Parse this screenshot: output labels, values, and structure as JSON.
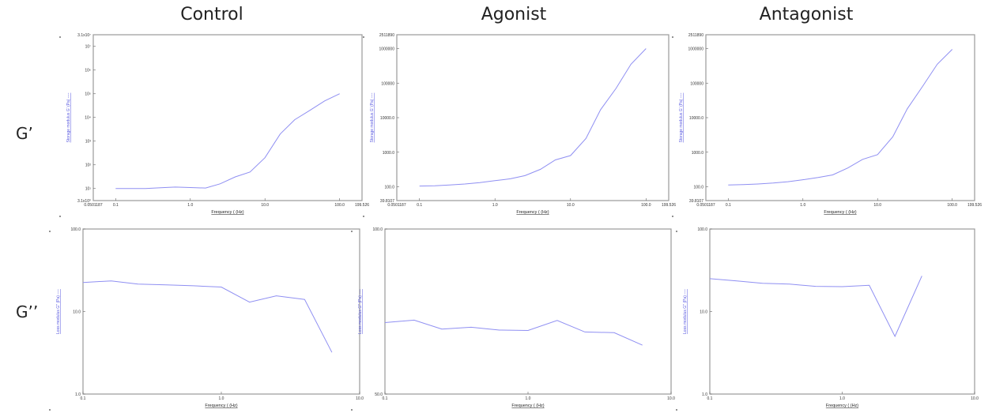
{
  "column_titles": [
    "Control",
    "Agonist",
    "Antagonist"
  ],
  "row_labels": [
    "G’",
    "G’’"
  ],
  "colors": {
    "series": "#8f8ff2",
    "frame": "#9a9a9a",
    "ylabel": "#5a5ae0"
  },
  "chart_data": [
    {
      "type": "line",
      "column": "Control",
      "row": "G’",
      "log_x": true,
      "log_y": true,
      "xlabel": "Frequency  ( (Hz)",
      "ylabel": "Storage modulus  G'  (Pa)  ----",
      "xlim": [
        0.0501187,
        199.526
      ],
      "ylim": [
        3.1,
        31000000.0
      ],
      "x_ticks": [
        0.1,
        1.0,
        10.0,
        100.0
      ],
      "x_tick_labels": [
        "0.1",
        "1.0",
        "10.0",
        "100.0"
      ],
      "x_edge_labels": [
        "0.0501187",
        "199.526"
      ],
      "y_ticks": [
        10,
        100,
        1000,
        10000,
        100000,
        1000000,
        10000000
      ],
      "y_tick_labels": [
        "10¹",
        "10²",
        "10³",
        "10⁴",
        "10⁵",
        "10⁶",
        "10⁷"
      ],
      "y_edge_labels": [
        "3.1x10⁰",
        "3.1x10⁷"
      ],
      "x": [
        0.1,
        0.16,
        0.25,
        0.4,
        0.63,
        1.0,
        1.6,
        2.5,
        4.0,
        6.3,
        10,
        16,
        25,
        40,
        63,
        100
      ],
      "y": [
        10,
        10,
        10,
        10.8,
        11.5,
        11,
        10.5,
        15.8,
        31,
        50,
        200,
        2000,
        8000,
        20000,
        50000,
        100000
      ]
    },
    {
      "type": "line",
      "column": "Agonist",
      "row": "G’",
      "log_x": true,
      "log_y": true,
      "xlabel": "Frequency  ( (Hz)",
      "ylabel": "Storage modulus  G'  (Pa)  ----",
      "xlim": [
        0.0501187,
        199.526
      ],
      "ylim": [
        39.8107,
        2511890
      ],
      "x_ticks": [
        0.1,
        1.0,
        10.0,
        100.0
      ],
      "x_tick_labels": [
        "0.1",
        "1.0",
        "10.0",
        "100.0"
      ],
      "x_edge_labels": [
        "0.0501187",
        "199.526"
      ],
      "y_ticks": [
        100,
        1000,
        10000,
        100000,
        1000000
      ],
      "y_tick_labels": [
        "100.0",
        "1000.0",
        "10000.0",
        "100000",
        "1000000"
      ],
      "y_edge_labels": [
        "39.8107",
        "2511890"
      ],
      "x": [
        0.1,
        0.16,
        0.25,
        0.4,
        0.63,
        1.0,
        1.6,
        2.5,
        4.0,
        6.3,
        10,
        16,
        25,
        40,
        63,
        100
      ],
      "y": [
        105,
        107,
        112,
        120,
        132,
        150,
        170,
        210,
        320,
        600,
        800,
        2500,
        17000,
        70000,
        350000,
        1000000
      ]
    },
    {
      "type": "line",
      "column": "Antagonist",
      "row": "G’",
      "log_x": true,
      "log_y": true,
      "xlabel": "Frequency  ( (Hz)",
      "ylabel": "Storage modulus  G'  (Pa)  ----",
      "xlim": [
        0.0501187,
        199.526
      ],
      "ylim": [
        39.8107,
        2511890
      ],
      "x_ticks": [
        0.1,
        1.0,
        10.0,
        100.0
      ],
      "x_tick_labels": [
        "0.1",
        "1.0",
        "10.0",
        "100.0"
      ],
      "x_edge_labels": [
        "0.0501187",
        "199.526"
      ],
      "y_ticks": [
        100,
        1000,
        10000,
        100000,
        1000000
      ],
      "y_tick_labels": [
        "100.0",
        "1000.0",
        "10000.0",
        "100000",
        "1000000"
      ],
      "y_edge_labels": [
        "39.8107",
        "2511890"
      ],
      "x": [
        0.1,
        0.16,
        0.25,
        0.4,
        0.63,
        1.0,
        1.6,
        2.5,
        4.0,
        6.3,
        10,
        16,
        25,
        40,
        63,
        100
      ],
      "y": [
        112,
        115,
        120,
        128,
        140,
        160,
        185,
        220,
        350,
        620,
        850,
        2800,
        18000,
        80000,
        350000,
        950000
      ]
    },
    {
      "type": "line",
      "column": "Control",
      "row": "G’’",
      "log_x": true,
      "log_y": true,
      "xlabel": "Frequency  ( (Hz)",
      "ylabel": "Loss modulus  G''  (Pa)  ----",
      "xlim": [
        0.1,
        10.0
      ],
      "ylim": [
        1.0,
        100.0
      ],
      "x_ticks": [
        0.1,
        1.0,
        10.0
      ],
      "x_tick_labels": [
        "0.1",
        "1.0",
        "10.0"
      ],
      "y_ticks": [
        1.0,
        10.0,
        100.0
      ],
      "y_tick_labels": [
        "1.0",
        "10.0",
        "100.0"
      ],
      "x": [
        0.1,
        0.16,
        0.25,
        0.4,
        0.63,
        1.0,
        1.6,
        2.5,
        4.0,
        6.3
      ],
      "y": [
        22.5,
        23.5,
        21.5,
        21,
        20.5,
        19.8,
        13,
        15.5,
        14,
        3.2
      ]
    },
    {
      "type": "line",
      "column": "Agonist",
      "row": "G’’",
      "log_x": true,
      "log_y": true,
      "xlabel": "Frequency  ( (Hz)",
      "ylabel": "Loss modulus  G''  (Pa)  ----",
      "xlim": [
        0.1,
        10.0
      ],
      "ylim": [
        50.0,
        100.0
      ],
      "x_ticks": [
        0.1,
        1.0,
        10.0
      ],
      "x_tick_labels": [
        "0.1",
        "1.0",
        "10.0"
      ],
      "y_ticks": [
        50.0,
        100.0
      ],
      "y_tick_labels": [
        "50.0",
        "100.0"
      ],
      "x": [
        0.1,
        0.16,
        0.25,
        0.4,
        0.63,
        1.0,
        1.6,
        2.5,
        4.0,
        6.3
      ],
      "y": [
        67.5,
        68.2,
        65.7,
        66.2,
        65.4,
        65.3,
        68.1,
        64.9,
        64.7,
        61.4
      ]
    },
    {
      "type": "line",
      "column": "Antagonist",
      "row": "G’’",
      "log_x": true,
      "log_y": true,
      "xlabel": "Frequency  ( (Hz)",
      "ylabel": "Loss modulus  G''  (Pa)  ----",
      "xlim": [
        0.1,
        10.0
      ],
      "ylim": [
        1.0,
        100.0
      ],
      "x_ticks": [
        0.1,
        1.0,
        10.0
      ],
      "x_tick_labels": [
        "0.1",
        "1.0",
        "10.0"
      ],
      "y_ticks": [
        1.0,
        10.0,
        100.0
      ],
      "y_tick_labels": [
        "1.0",
        "10.0",
        "100.0"
      ],
      "x": [
        0.1,
        0.16,
        0.25,
        0.4,
        0.63,
        1.0,
        1.6,
        2.5,
        4.0
      ],
      "y": [
        25,
        23.5,
        22,
        21.5,
        20.2,
        20,
        20.8,
        5,
        27
      ]
    }
  ]
}
